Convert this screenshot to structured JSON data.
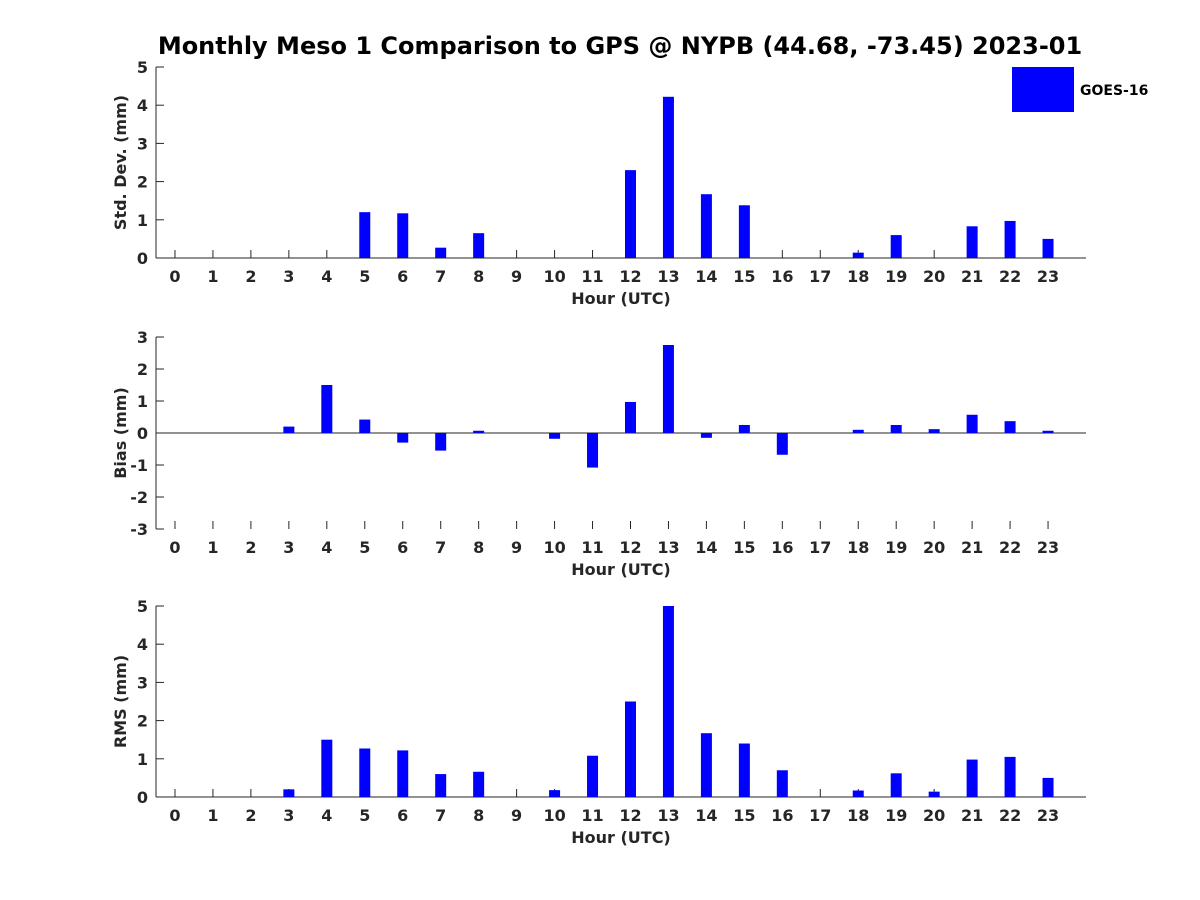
{
  "chart_data": {
    "title": "Monthly Meso 1 Comparison to GPS @ NYPB (44.68, -73.45) 2023-01",
    "legend": {
      "placement": "top-right",
      "entries": [
        {
          "name": "GOES-16",
          "color": "#0000ff"
        }
      ]
    },
    "bar_color": "#0000ff",
    "panels": [
      {
        "type": "bar",
        "ylabel": "Std. Dev. (mm)",
        "xlabel": "Hour (UTC)",
        "ylim": [
          0,
          5
        ],
        "yticks": [
          "0",
          "1",
          "2",
          "3",
          "4",
          "5"
        ],
        "categories": [
          "0",
          "1",
          "2",
          "3",
          "4",
          "5",
          "6",
          "7",
          "8",
          "9",
          "10",
          "11",
          "12",
          "13",
          "14",
          "15",
          "16",
          "17",
          "18",
          "19",
          "20",
          "21",
          "22",
          "23"
        ],
        "series": [
          {
            "name": "GOES-16",
            "values": [
              0,
              0,
              0,
              0,
              0,
              1.2,
              1.17,
              0.27,
              0.65,
              0,
              0,
              0,
              2.3,
              4.22,
              1.67,
              1.38,
              0,
              0,
              0.14,
              0.6,
              0,
              0.83,
              0.97,
              0.5
            ]
          }
        ]
      },
      {
        "type": "bar",
        "ylabel": "Bias (mm)",
        "xlabel": "Hour (UTC)",
        "ylim": [
          -3,
          3
        ],
        "yticks": [
          "-3",
          "-2",
          "-1",
          "0",
          "1",
          "2",
          "3"
        ],
        "categories": [
          "0",
          "1",
          "2",
          "3",
          "4",
          "5",
          "6",
          "7",
          "8",
          "9",
          "10",
          "11",
          "12",
          "13",
          "14",
          "15",
          "16",
          "17",
          "18",
          "19",
          "20",
          "21",
          "22",
          "23"
        ],
        "series": [
          {
            "name": "GOES-16",
            "values": [
              0,
              0,
              0,
              0.2,
              1.5,
              0.42,
              -0.3,
              -0.55,
              0.07,
              0,
              -0.18,
              -1.08,
              0.97,
              2.75,
              -0.15,
              0.25,
              -0.68,
              0,
              0.1,
              0.25,
              0.12,
              0.57,
              0.37,
              0.07
            ]
          }
        ]
      },
      {
        "type": "bar",
        "ylabel": "RMS (mm)",
        "xlabel": "Hour (UTC)",
        "ylim": [
          0,
          5
        ],
        "yticks": [
          "0",
          "1",
          "2",
          "3",
          "4",
          "5"
        ],
        "categories": [
          "0",
          "1",
          "2",
          "3",
          "4",
          "5",
          "6",
          "7",
          "8",
          "9",
          "10",
          "11",
          "12",
          "13",
          "14",
          "15",
          "16",
          "17",
          "18",
          "19",
          "20",
          "21",
          "22",
          "23"
        ],
        "series": [
          {
            "name": "GOES-16",
            "values": [
              0,
              0,
              0,
              0.2,
              1.5,
              1.27,
              1.22,
              0.6,
              0.66,
              0,
              0.18,
              1.08,
              2.5,
              5.0,
              1.67,
              1.4,
              0.7,
              0,
              0.17,
              0.62,
              0.14,
              0.98,
              1.05,
              0.5
            ]
          }
        ]
      }
    ]
  }
}
